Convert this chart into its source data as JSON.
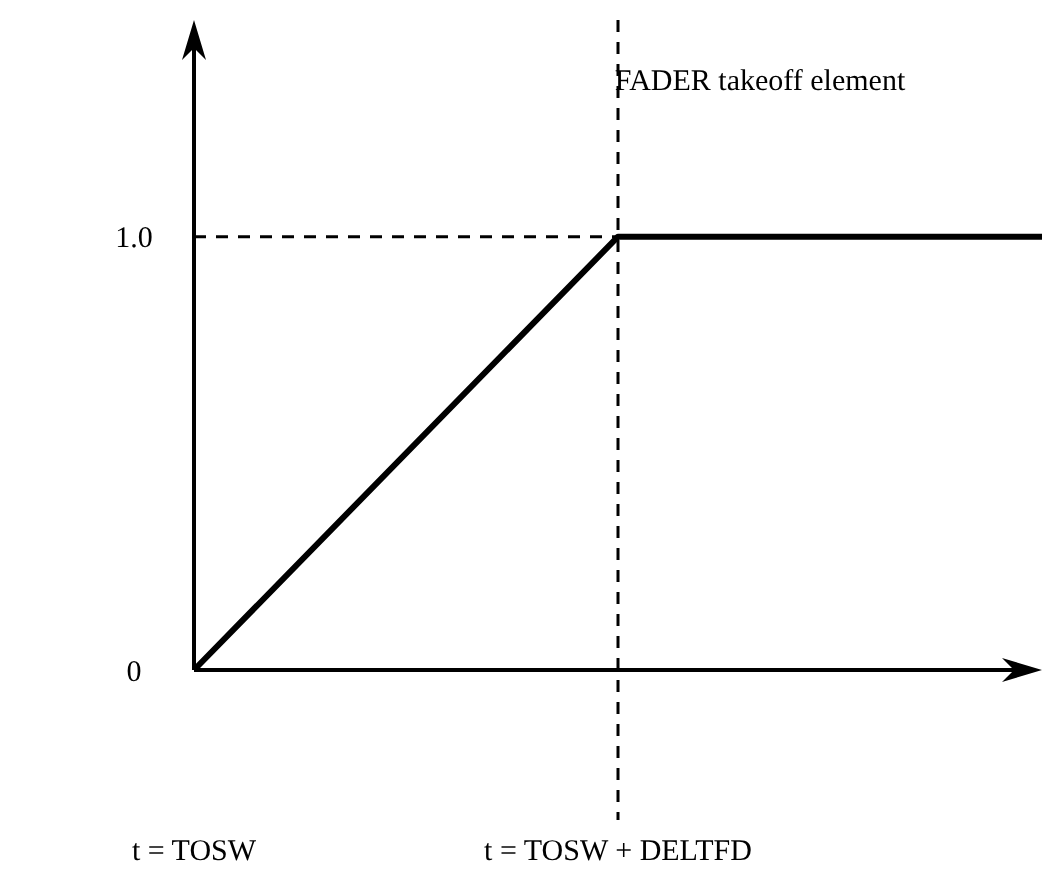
{
  "chart_data": {
    "type": "line",
    "title": "FADER takeoff element",
    "categories": [
      "t = TOSW",
      "t = TOSW + DELTFD",
      null
    ],
    "series": [
      {
        "color": "#000000",
        "values": [
          0,
          1,
          1
        ]
      }
    ],
    "ylim": [
      0,
      1.5
    ],
    "yticks": [
      {
        "value": 0,
        "label": "0"
      },
      {
        "value": 1,
        "label": "1.0"
      }
    ],
    "ref_lines": [
      {
        "axis": "y",
        "value": 1,
        "line_style": "dashed"
      },
      {
        "axis": "x",
        "value": "t = TOSW + DELTFD",
        "line_style": "dashed"
      }
    ],
    "line_style": "solid"
  }
}
